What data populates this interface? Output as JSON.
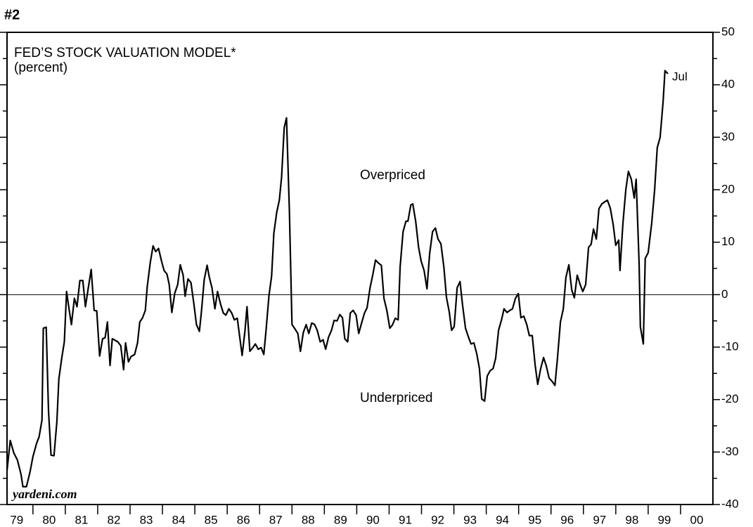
{
  "chart_data": {
    "type": "line",
    "figure_label": "#2",
    "title": "FED’S STOCK VALUATION MODEL*",
    "subtitle": "(percent)",
    "annotations": [
      "Overpriced",
      "Underpriced",
      "Jul"
    ],
    "source": "yardeni.com",
    "color": "#000000",
    "xlim": [
      1979.2,
      2001
    ],
    "xticks": [
      {
        "value": 1979.5,
        "label": "79"
      },
      {
        "value": 1980.5,
        "label": "80"
      },
      {
        "value": 1981.5,
        "label": "81"
      },
      {
        "value": 1982.5,
        "label": "82"
      },
      {
        "value": 1983.5,
        "label": "83"
      },
      {
        "value": 1984.5,
        "label": "84"
      },
      {
        "value": 1985.5,
        "label": "85"
      },
      {
        "value": 1986.5,
        "label": "86"
      },
      {
        "value": 1987.5,
        "label": "87"
      },
      {
        "value": 1988.5,
        "label": "88"
      },
      {
        "value": 1989.5,
        "label": "89"
      },
      {
        "value": 1990.5,
        "label": "90"
      },
      {
        "value": 1991.5,
        "label": "91"
      },
      {
        "value": 1992.5,
        "label": "92"
      },
      {
        "value": 1993.5,
        "label": "93"
      },
      {
        "value": 1994.5,
        "label": "94"
      },
      {
        "value": 1995.5,
        "label": "95"
      },
      {
        "value": 1996.5,
        "label": "96"
      },
      {
        "value": 1997.5,
        "label": "97"
      },
      {
        "value": 1998.5,
        "label": "98"
      },
      {
        "value": 1999.5,
        "label": "99"
      },
      {
        "value": 2000.5,
        "label": "00"
      }
    ],
    "ylim": [
      -40,
      50
    ],
    "yticks": [
      50,
      40,
      30,
      20,
      10,
      0,
      -10,
      -20,
      -30,
      -40
    ],
    "x": [
      1979.2,
      1979.3,
      1979.41,
      1979.52,
      1979.63,
      1979.69,
      1979.8,
      1979.91,
      1980.0,
      1980.11,
      1980.19,
      1980.28,
      1980.32,
      1980.41,
      1980.48,
      1980.56,
      1980.65,
      1980.74,
      1980.8,
      1980.89,
      1980.97,
      1981.04,
      1981.1,
      1981.19,
      1981.28,
      1981.36,
      1981.45,
      1981.54,
      1981.62,
      1981.71,
      1981.8,
      1981.89,
      1981.97,
      1982.06,
      1982.15,
      1982.23,
      1982.3,
      1982.38,
      1982.45,
      1982.51,
      1982.62,
      1982.71,
      1982.8,
      1982.86,
      1982.95,
      1983.03,
      1983.14,
      1983.23,
      1983.3,
      1983.38,
      1983.47,
      1983.53,
      1983.62,
      1983.71,
      1983.79,
      1983.88,
      1983.97,
      1984.05,
      1984.14,
      1984.21,
      1984.29,
      1984.38,
      1984.47,
      1984.55,
      1984.64,
      1984.7,
      1984.79,
      1984.88,
      1984.97,
      1985.05,
      1985.14,
      1985.2,
      1985.29,
      1985.38,
      1985.44,
      1985.53,
      1985.62,
      1985.7,
      1985.79,
      1985.88,
      1985.96,
      1986.05,
      1986.14,
      1986.22,
      1986.31,
      1986.38,
      1986.46,
      1986.55,
      1986.61,
      1986.7,
      1986.79,
      1986.87,
      1986.96,
      1987.05,
      1987.13,
      1987.2,
      1987.29,
      1987.37,
      1987.44,
      1987.53,
      1987.61,
      1987.68,
      1987.76,
      1987.83,
      1987.92,
      1988.0,
      1988.09,
      1988.18,
      1988.26,
      1988.35,
      1988.44,
      1988.52,
      1988.61,
      1988.7,
      1988.78,
      1988.87,
      1988.96,
      1989.04,
      1989.13,
      1989.22,
      1989.3,
      1989.39,
      1989.48,
      1989.56,
      1989.63,
      1989.72,
      1989.8,
      1989.89,
      1989.98,
      1990.06,
      1990.15,
      1990.24,
      1990.32,
      1990.41,
      1990.5,
      1990.58,
      1990.67,
      1990.76,
      1990.84,
      1990.93,
      1991.02,
      1991.1,
      1991.19,
      1991.28,
      1991.34,
      1991.43,
      1991.52,
      1991.58,
      1991.67,
      1991.73,
      1991.82,
      1991.91,
      1991.99,
      1992.08,
      1992.17,
      1992.25,
      1992.34,
      1992.43,
      1992.51,
      1992.6,
      1992.69,
      1992.77,
      1992.86,
      1992.93,
      1993.01,
      1993.1,
      1993.19,
      1993.27,
      1993.36,
      1993.45,
      1993.53,
      1993.62,
      1993.71,
      1993.79,
      1993.86,
      1993.95,
      1994.03,
      1994.12,
      1994.21,
      1994.29,
      1994.38,
      1994.47,
      1994.55,
      1994.64,
      1994.73,
      1994.81,
      1994.9,
      1994.99,
      1995.07,
      1995.16,
      1995.25,
      1995.33,
      1995.42,
      1995.51,
      1995.59,
      1995.68,
      1995.77,
      1995.85,
      1995.94,
      1996.03,
      1996.12,
      1996.2,
      1996.29,
      1996.38,
      1996.46,
      1996.55,
      1996.64,
      1996.72,
      1996.81,
      1996.9,
      1996.98,
      1997.07,
      1997.16,
      1997.24,
      1997.31,
      1997.4,
      1997.48,
      1997.57,
      1997.66,
      1997.74,
      1997.83,
      1997.92,
      1998.0,
      1998.09,
      1998.13,
      1998.22,
      1998.31,
      1998.39,
      1998.48,
      1998.57,
      1998.63,
      1998.72,
      1998.76,
      1998.85,
      1998.91,
      1999.0,
      1999.11,
      1999.2,
      1999.28,
      1999.37,
      1999.46,
      1999.52,
      1999.61
    ],
    "values": [
      -33.5,
      -27.8,
      -30.2,
      -31.5,
      -34.2,
      -36.6,
      -36.6,
      -33.8,
      -30.9,
      -28.4,
      -27.1,
      -23.9,
      -6.4,
      -6.2,
      -22.2,
      -30.6,
      -30.7,
      -24.2,
      -16.1,
      -12.1,
      -9.0,
      0.6,
      -2.1,
      -5.7,
      -0.7,
      -2.3,
      2.7,
      2.7,
      -2.3,
      1.3,
      4.8,
      -3.0,
      -3.1,
      -11.7,
      -8.4,
      -8.2,
      -5.2,
      -13.5,
      -8.4,
      -8.6,
      -9.0,
      -9.7,
      -14.3,
      -9.2,
      -12.8,
      -11.8,
      -11.4,
      -9.2,
      -5.2,
      -4.5,
      -3.0,
      1.5,
      6.0,
      9.3,
      8.2,
      8.8,
      6.4,
      4.6,
      3.9,
      1.9,
      -3.4,
      0.3,
      1.9,
      5.7,
      3.7,
      -0.3,
      3.0,
      2.3,
      -1.7,
      -5.7,
      -7.0,
      -3.5,
      2.9,
      5.6,
      3.5,
      1.3,
      -2.7,
      0.6,
      -1.7,
      -3.5,
      -3.9,
      -2.7,
      -3.5,
      -4.8,
      -4.5,
      -7.8,
      -11.6,
      -6.8,
      -2.3,
      -10.8,
      -10.1,
      -9.4,
      -10.4,
      -10.1,
      -11.4,
      -6.8,
      -0.1,
      3.5,
      11.7,
      15.7,
      18.0,
      22.4,
      31.8,
      33.7,
      16.0,
      -5.7,
      -6.5,
      -7.4,
      -10.8,
      -7.2,
      -5.7,
      -7.4,
      -5.4,
      -5.7,
      -6.8,
      -9.0,
      -8.6,
      -10.4,
      -8.1,
      -6.8,
      -4.9,
      -5.0,
      -3.8,
      -4.4,
      -8.4,
      -9.0,
      -3.5,
      -3.0,
      -3.9,
      -7.4,
      -5.4,
      -3.5,
      -2.5,
      1.3,
      3.9,
      6.6,
      6.0,
      5.6,
      -0.7,
      -3.0,
      -6.4,
      -5.8,
      -4.5,
      -4.8,
      5.3,
      12.0,
      14.0,
      14.0,
      17.1,
      17.3,
      14.0,
      9.0,
      6.4,
      4.6,
      1.1,
      7.7,
      12.0,
      12.7,
      10.6,
      9.7,
      5.3,
      -0.5,
      -3.4,
      -6.8,
      -6.1,
      1.3,
      2.5,
      -2.1,
      -6.4,
      -8.1,
      -9.4,
      -9.2,
      -11.4,
      -14.1,
      -19.9,
      -20.3,
      -15.5,
      -14.5,
      -14.1,
      -12.1,
      -6.8,
      -4.8,
      -2.7,
      -3.4,
      -3.0,
      -2.7,
      -0.7,
      0.2,
      -4.4,
      -4.1,
      -5.7,
      -7.8,
      -7.8,
      -13.5,
      -17.1,
      -14.1,
      -12.0,
      -13.5,
      -15.9,
      -16.5,
      -17.3,
      -12.1,
      -5.2,
      -2.7,
      3.3,
      5.7,
      0.9,
      -0.6,
      3.7,
      1.9,
      0.6,
      1.9,
      9.0,
      9.6,
      12.5,
      10.6,
      16.4,
      17.3,
      17.7,
      18.0,
      16.5,
      13.3,
      9.4,
      10.4,
      4.6,
      13.6,
      20.0,
      23.5,
      22.0,
      18.4,
      22.0,
      6.0,
      -6.1,
      -9.4,
      6.9,
      8.0,
      13.7,
      20.0,
      28.0,
      30.0,
      36.7,
      42.7,
      42.1
    ]
  }
}
